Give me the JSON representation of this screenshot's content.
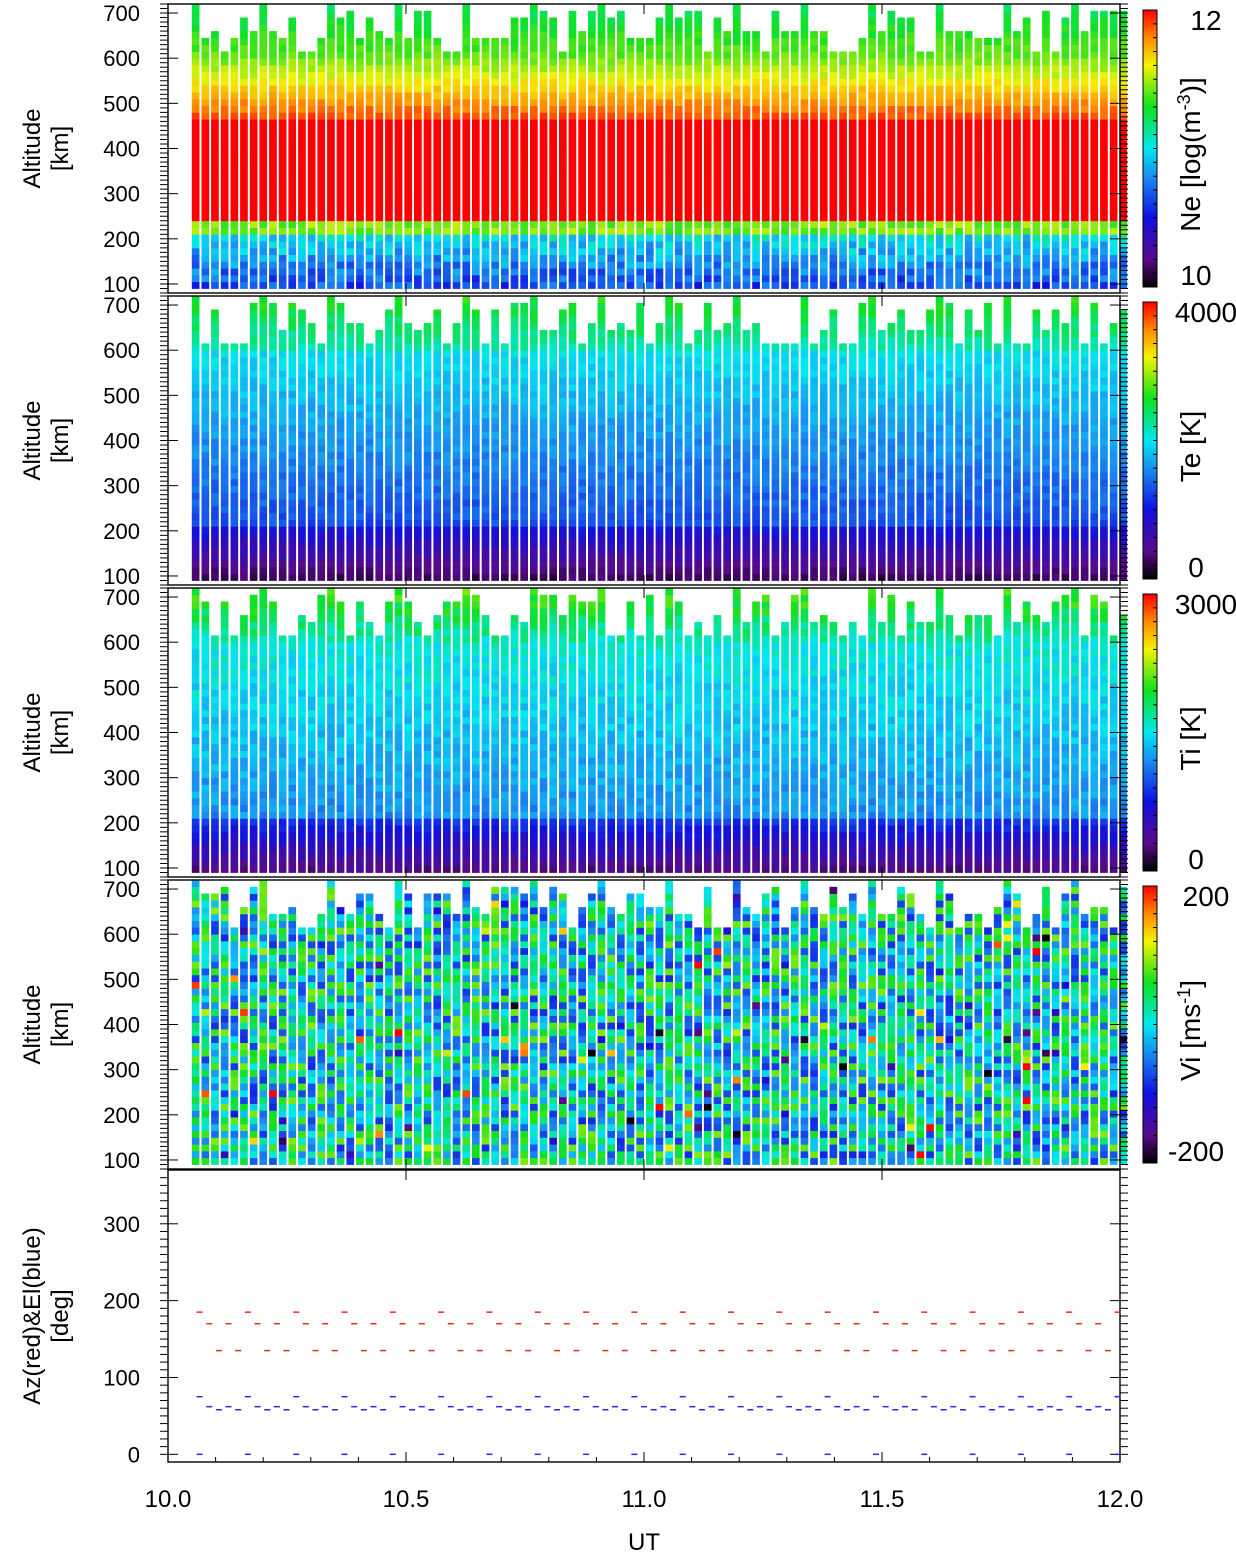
{
  "chart_data": [
    {
      "type": "heatmap",
      "panel": "ne",
      "ylabel": [
        "Altitude",
        "[km]"
      ],
      "yticks": [
        100,
        200,
        300,
        400,
        500,
        600,
        700
      ],
      "ylim": [
        80,
        720
      ],
      "colorbar_label": "Ne [log(m",
      "colorbar_label_sup": "-3",
      "colorbar_label_end": ")]",
      "colorbar_ticks": [
        "12",
        "10"
      ],
      "colorbar_range": [
        9.6,
        12.4
      ]
    },
    {
      "type": "heatmap",
      "panel": "te",
      "ylabel": [
        "Altitude",
        "[km]"
      ],
      "yticks": [
        100,
        200,
        300,
        400,
        500,
        600,
        700
      ],
      "ylim": [
        80,
        720
      ],
      "colorbar_label": "Te [K]",
      "colorbar_ticks": [
        "4000",
        "0"
      ],
      "colorbar_range": [
        0,
        4000
      ]
    },
    {
      "type": "heatmap",
      "panel": "ti",
      "ylabel": [
        "Altitude",
        "[km]"
      ],
      "yticks": [
        100,
        200,
        300,
        400,
        500,
        600,
        700
      ],
      "ylim": [
        80,
        720
      ],
      "colorbar_label": "Ti [K]",
      "colorbar_ticks": [
        "3000",
        "0"
      ],
      "colorbar_range": [
        0,
        3000
      ]
    },
    {
      "type": "heatmap",
      "panel": "vi",
      "ylabel": [
        "Altitude",
        "[km]"
      ],
      "yticks": [
        100,
        200,
        300,
        400,
        500,
        600,
        700
      ],
      "ylim": [
        80,
        720
      ],
      "colorbar_label": "Vi [ms",
      "colorbar_label_sup": "-1",
      "colorbar_label_end": "]",
      "colorbar_ticks": [
        "200",
        "-200"
      ],
      "colorbar_range": [
        -200,
        200
      ]
    },
    {
      "type": "scatter",
      "panel": "azel",
      "ylabel": [
        "Az(red)&El(blue)",
        "[deg]"
      ],
      "yticks": [
        0,
        100,
        200,
        300
      ],
      "ylim": [
        -10,
        370
      ],
      "series_colors": {
        "az": "#e8281e",
        "el": "#2a2ae0"
      },
      "az_levels": [
        135,
        158,
        170,
        185
      ],
      "el_levels": [
        0,
        58,
        62,
        75
      ]
    }
  ],
  "xaxis": {
    "label": "UT",
    "ticks": [
      "10.0",
      "10.5",
      "11.0",
      "11.5",
      "12.0"
    ],
    "xlim": [
      10.0,
      12.0
    ]
  },
  "colors": {
    "ne_high": "#ff1a00",
    "grid_line": "#000000"
  }
}
